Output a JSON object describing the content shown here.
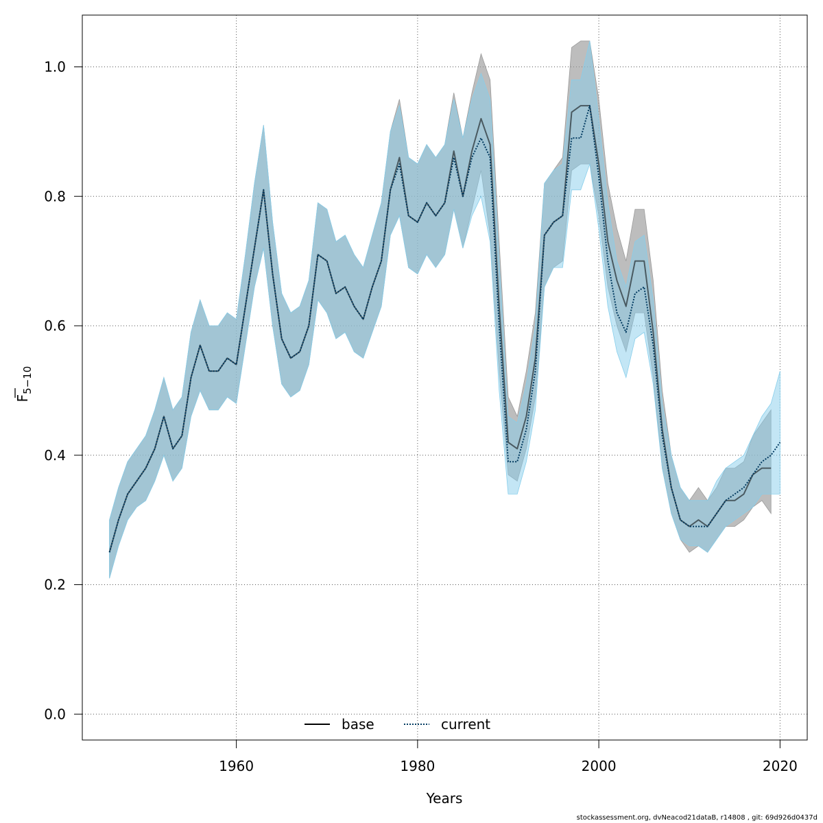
{
  "colors": {
    "base_band": "#9a9a9a",
    "current_band": "#87ceeb",
    "base_line": "#000000",
    "current_line": "#00395f",
    "grid": "#555555"
  },
  "footer": "stockassessment.org, dvNeacod21dataB, r14808 , git: 69d926d0437d",
  "chart_data": {
    "type": "line",
    "xlabel": "Years",
    "ylabel_main": "F",
    "ylabel_sub": "5−10",
    "xlim": [
      1943,
      2023
    ],
    "ylim": [
      -0.04,
      1.08
    ],
    "xticks": [
      1960,
      1980,
      2000,
      2020
    ],
    "yticks": [
      0.0,
      0.2,
      0.4,
      0.6,
      0.8,
      1.0
    ],
    "grid": true,
    "legend_position": "bottom-center",
    "series": [
      {
        "name": "base",
        "style": "solid",
        "x": [
          1946,
          1947,
          1948,
          1949,
          1950,
          1951,
          1952,
          1953,
          1954,
          1955,
          1956,
          1957,
          1958,
          1959,
          1960,
          1961,
          1962,
          1963,
          1964,
          1965,
          1966,
          1967,
          1968,
          1969,
          1970,
          1971,
          1972,
          1973,
          1974,
          1975,
          1976,
          1977,
          1978,
          1979,
          1980,
          1981,
          1982,
          1983,
          1984,
          1985,
          1986,
          1987,
          1988,
          1989,
          1990,
          1991,
          1992,
          1993,
          1994,
          1995,
          1996,
          1997,
          1998,
          1999,
          2000,
          2001,
          2002,
          2003,
          2004,
          2005,
          2006,
          2007,
          2008,
          2009,
          2010,
          2011,
          2012,
          2013,
          2014,
          2015,
          2016,
          2017,
          2018,
          2019
        ],
        "y": [
          0.25,
          0.3,
          0.34,
          0.36,
          0.38,
          0.41,
          0.46,
          0.41,
          0.43,
          0.52,
          0.57,
          0.53,
          0.53,
          0.55,
          0.54,
          0.63,
          0.72,
          0.81,
          0.68,
          0.58,
          0.55,
          0.56,
          0.6,
          0.71,
          0.7,
          0.65,
          0.66,
          0.63,
          0.61,
          0.66,
          0.7,
          0.81,
          0.86,
          0.77,
          0.76,
          0.79,
          0.77,
          0.79,
          0.87,
          0.8,
          0.87,
          0.92,
          0.88,
          0.63,
          0.42,
          0.41,
          0.46,
          0.55,
          0.74,
          0.76,
          0.77,
          0.93,
          0.94,
          0.94,
          0.85,
          0.73,
          0.67,
          0.63,
          0.7,
          0.7,
          0.59,
          0.44,
          0.35,
          0.3,
          0.29,
          0.3,
          0.29,
          0.31,
          0.33,
          0.33,
          0.34,
          0.37,
          0.38,
          0.38
        ],
        "lower": [
          0.21,
          0.26,
          0.3,
          0.32,
          0.33,
          0.36,
          0.4,
          0.36,
          0.38,
          0.46,
          0.5,
          0.47,
          0.47,
          0.49,
          0.48,
          0.57,
          0.66,
          0.72,
          0.6,
          0.51,
          0.49,
          0.5,
          0.54,
          0.64,
          0.62,
          0.58,
          0.59,
          0.56,
          0.55,
          0.59,
          0.63,
          0.74,
          0.77,
          0.69,
          0.68,
          0.71,
          0.69,
          0.71,
          0.78,
          0.72,
          0.78,
          0.84,
          0.74,
          0.53,
          0.37,
          0.36,
          0.41,
          0.49,
          0.66,
          0.69,
          0.7,
          0.84,
          0.85,
          0.85,
          0.77,
          0.66,
          0.6,
          0.56,
          0.62,
          0.62,
          0.52,
          0.38,
          0.31,
          0.27,
          0.25,
          0.26,
          0.25,
          0.27,
          0.29,
          0.29,
          0.3,
          0.32,
          0.33,
          0.31
        ],
        "upper": [
          0.3,
          0.35,
          0.39,
          0.41,
          0.43,
          0.47,
          0.52,
          0.47,
          0.49,
          0.59,
          0.64,
          0.6,
          0.6,
          0.62,
          0.61,
          0.71,
          0.82,
          0.91,
          0.76,
          0.65,
          0.62,
          0.63,
          0.67,
          0.79,
          0.78,
          0.73,
          0.74,
          0.71,
          0.69,
          0.74,
          0.79,
          0.9,
          0.95,
          0.86,
          0.85,
          0.88,
          0.86,
          0.88,
          0.96,
          0.89,
          0.96,
          1.02,
          0.98,
          0.73,
          0.49,
          0.46,
          0.53,
          0.62,
          0.82,
          0.84,
          0.86,
          1.03,
          1.04,
          1.04,
          0.95,
          0.82,
          0.75,
          0.7,
          0.78,
          0.78,
          0.67,
          0.5,
          0.4,
          0.35,
          0.33,
          0.35,
          0.33,
          0.35,
          0.38,
          0.38,
          0.39,
          0.43,
          0.45,
          0.47
        ]
      },
      {
        "name": "current",
        "style": "dotted",
        "x": [
          1946,
          1947,
          1948,
          1949,
          1950,
          1951,
          1952,
          1953,
          1954,
          1955,
          1956,
          1957,
          1958,
          1959,
          1960,
          1961,
          1962,
          1963,
          1964,
          1965,
          1966,
          1967,
          1968,
          1969,
          1970,
          1971,
          1972,
          1973,
          1974,
          1975,
          1976,
          1977,
          1978,
          1979,
          1980,
          1981,
          1982,
          1983,
          1984,
          1985,
          1986,
          1987,
          1988,
          1989,
          1990,
          1991,
          1992,
          1993,
          1994,
          1995,
          1996,
          1997,
          1998,
          1999,
          2000,
          2001,
          2002,
          2003,
          2004,
          2005,
          2006,
          2007,
          2008,
          2009,
          2010,
          2011,
          2012,
          2013,
          2014,
          2015,
          2016,
          2017,
          2018,
          2019,
          2020
        ],
        "y": [
          0.25,
          0.3,
          0.34,
          0.36,
          0.38,
          0.41,
          0.46,
          0.41,
          0.43,
          0.52,
          0.57,
          0.53,
          0.53,
          0.55,
          0.54,
          0.63,
          0.72,
          0.81,
          0.68,
          0.58,
          0.55,
          0.56,
          0.6,
          0.71,
          0.7,
          0.65,
          0.66,
          0.63,
          0.61,
          0.66,
          0.7,
          0.81,
          0.85,
          0.77,
          0.76,
          0.79,
          0.77,
          0.79,
          0.86,
          0.8,
          0.86,
          0.89,
          0.86,
          0.6,
          0.39,
          0.39,
          0.44,
          0.53,
          0.74,
          0.76,
          0.77,
          0.89,
          0.89,
          0.94,
          0.83,
          0.7,
          0.62,
          0.59,
          0.65,
          0.66,
          0.57,
          0.43,
          0.35,
          0.3,
          0.29,
          0.29,
          0.29,
          0.31,
          0.33,
          0.34,
          0.35,
          0.37,
          0.39,
          0.4,
          0.42
        ],
        "lower": [
          0.21,
          0.26,
          0.3,
          0.32,
          0.33,
          0.36,
          0.4,
          0.36,
          0.38,
          0.46,
          0.5,
          0.47,
          0.47,
          0.49,
          0.48,
          0.57,
          0.66,
          0.72,
          0.6,
          0.51,
          0.49,
          0.5,
          0.54,
          0.64,
          0.62,
          0.58,
          0.59,
          0.56,
          0.55,
          0.59,
          0.63,
          0.74,
          0.77,
          0.69,
          0.68,
          0.71,
          0.69,
          0.71,
          0.78,
          0.72,
          0.77,
          0.8,
          0.73,
          0.5,
          0.34,
          0.34,
          0.39,
          0.47,
          0.66,
          0.69,
          0.69,
          0.81,
          0.81,
          0.85,
          0.75,
          0.63,
          0.56,
          0.52,
          0.58,
          0.59,
          0.51,
          0.38,
          0.31,
          0.27,
          0.26,
          0.26,
          0.25,
          0.27,
          0.29,
          0.3,
          0.31,
          0.32,
          0.34,
          0.34,
          0.34
        ],
        "upper": [
          0.3,
          0.35,
          0.39,
          0.41,
          0.43,
          0.47,
          0.52,
          0.47,
          0.49,
          0.59,
          0.64,
          0.6,
          0.6,
          0.62,
          0.61,
          0.71,
          0.82,
          0.91,
          0.76,
          0.65,
          0.62,
          0.63,
          0.67,
          0.79,
          0.78,
          0.73,
          0.74,
          0.71,
          0.69,
          0.74,
          0.79,
          0.9,
          0.94,
          0.86,
          0.85,
          0.88,
          0.86,
          0.88,
          0.95,
          0.89,
          0.95,
          0.99,
          0.95,
          0.7,
          0.46,
          0.45,
          0.51,
          0.6,
          0.82,
          0.84,
          0.85,
          0.98,
          0.98,
          1.04,
          0.92,
          0.79,
          0.7,
          0.66,
          0.73,
          0.74,
          0.64,
          0.48,
          0.4,
          0.35,
          0.33,
          0.33,
          0.33,
          0.36,
          0.38,
          0.39,
          0.4,
          0.43,
          0.46,
          0.48,
          0.53
        ]
      }
    ]
  }
}
